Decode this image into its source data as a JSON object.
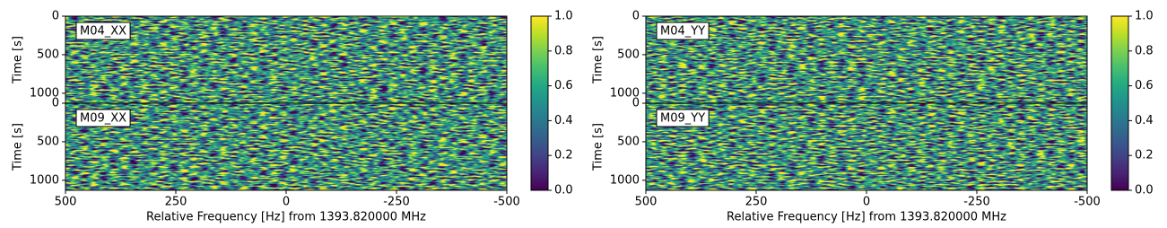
{
  "chart_data": [
    {
      "type": "heatmap",
      "cmap": "viridis",
      "xlabel": "Relative Frequency [Hz] from 1393.820000 MHz",
      "xlim": [
        500,
        -500
      ],
      "xticks": [
        500,
        250,
        0,
        -250,
        -500
      ],
      "panels": [
        {
          "label": "M04_XX",
          "ylabel": "Time [s]",
          "ylim": [
            0,
            1130
          ],
          "yticks": [
            0,
            500,
            1000
          ]
        },
        {
          "label": "M09_XX",
          "ylabel": "Time [s]",
          "ylim": [
            0,
            1130
          ],
          "yticks": [
            0,
            500,
            1000
          ]
        }
      ],
      "colorbar": {
        "lim": [
          0,
          1
        ],
        "ticks": [
          {
            "value": 0,
            "label": "0.0"
          },
          0.2,
          0.4,
          0.6,
          0.8,
          {
            "value": 1,
            "label": "1.0"
          }
        ]
      }
    },
    {
      "type": "heatmap",
      "cmap": "viridis",
      "xlabel": "Relative Frequency [Hz] from 1393.820000 MHz",
      "xlim": [
        500,
        -500
      ],
      "xticks": [
        500,
        250,
        0,
        -250,
        -500
      ],
      "panels": [
        {
          "label": "M04_YY",
          "ylabel": "Time [s]",
          "ylim": [
            0,
            1130
          ],
          "yticks": [
            0,
            500,
            1000
          ]
        },
        {
          "label": "M09_YY",
          "ylabel": "Time [s]",
          "ylim": [
            0,
            1130
          ],
          "yticks": [
            0,
            500,
            1000
          ]
        }
      ],
      "colorbar": {
        "lim": [
          0,
          1
        ],
        "ticks": [
          {
            "value": 0,
            "label": "0.0"
          },
          0.2,
          0.4,
          0.6,
          0.8,
          {
            "value": 1,
            "label": "1.0"
          }
        ]
      }
    }
  ]
}
